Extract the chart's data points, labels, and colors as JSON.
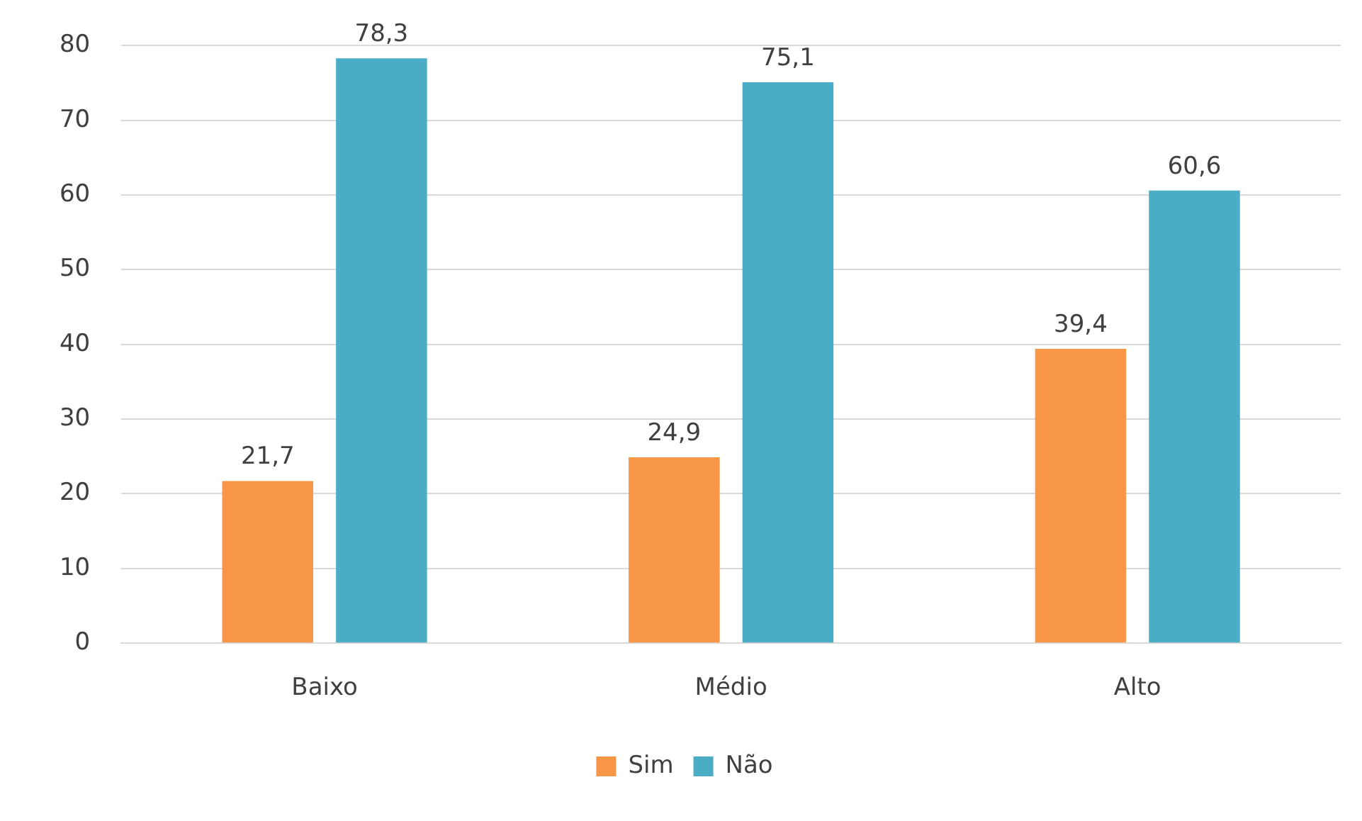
{
  "chart_data": {
    "type": "bar",
    "categories": [
      "Baixo",
      "Médio",
      "Alto"
    ],
    "series": [
      {
        "name": "Sim",
        "color": "#f79646",
        "values": [
          21.7,
          24.9,
          39.4
        ],
        "value_labels": [
          "21,7",
          "24,9",
          "39,4"
        ]
      },
      {
        "name": "Não",
        "color": "#4bacc6",
        "values": [
          78.3,
          75.1,
          60.6
        ],
        "value_labels": [
          "78,3",
          "75,1",
          "60,6"
        ]
      }
    ],
    "ylim": [
      0,
      80
    ],
    "yticks": [
      0,
      10,
      20,
      30,
      40,
      50,
      60,
      70,
      80
    ],
    "grid": "y",
    "legend": "bottom"
  }
}
